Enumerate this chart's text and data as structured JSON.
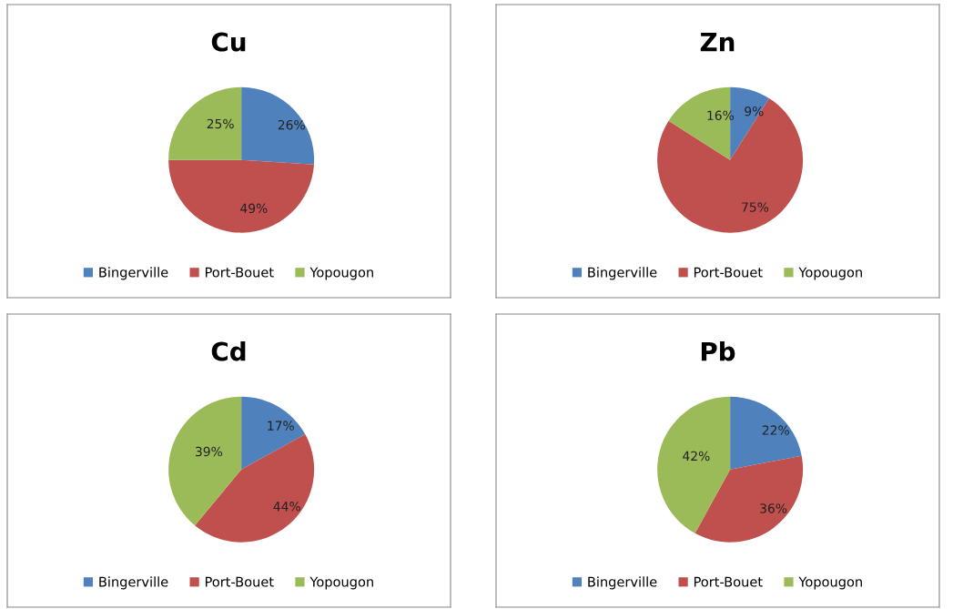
{
  "chart_data": [
    {
      "type": "pie",
      "title": "Cu",
      "categories": [
        "Bingerville",
        "Port-Bouet",
        "Yopougon"
      ],
      "values": [
        26,
        49,
        25
      ],
      "value_labels": [
        "26%",
        "49%",
        "25%"
      ],
      "colors": [
        "#4f81bd",
        "#c0504d",
        "#9bbb59"
      ],
      "legend": "bottom"
    },
    {
      "type": "pie",
      "title": "Zn",
      "categories": [
        "Bingerville",
        "Port-Bouet",
        "Yopougon"
      ],
      "values": [
        9,
        75,
        16
      ],
      "value_labels": [
        "9%",
        "75%",
        "16%"
      ],
      "colors": [
        "#4f81bd",
        "#c0504d",
        "#9bbb59"
      ],
      "legend": "bottom"
    },
    {
      "type": "pie",
      "title": "Cd",
      "categories": [
        "Bingerville",
        "Port-Bouet",
        "Yopougon"
      ],
      "values": [
        17,
        44,
        39
      ],
      "value_labels": [
        "17%",
        "44%",
        "39%"
      ],
      "colors": [
        "#4f81bd",
        "#c0504d",
        "#9bbb59"
      ],
      "legend": "bottom"
    },
    {
      "type": "pie",
      "title": "Pb",
      "categories": [
        "Bingerville",
        "Port-Bouet",
        "Yopougon"
      ],
      "values": [
        22,
        36,
        42
      ],
      "value_labels": [
        "22%",
        "36%",
        "42%"
      ],
      "colors": [
        "#4f81bd",
        "#c0504d",
        "#9bbb59"
      ],
      "legend": "bottom"
    }
  ]
}
